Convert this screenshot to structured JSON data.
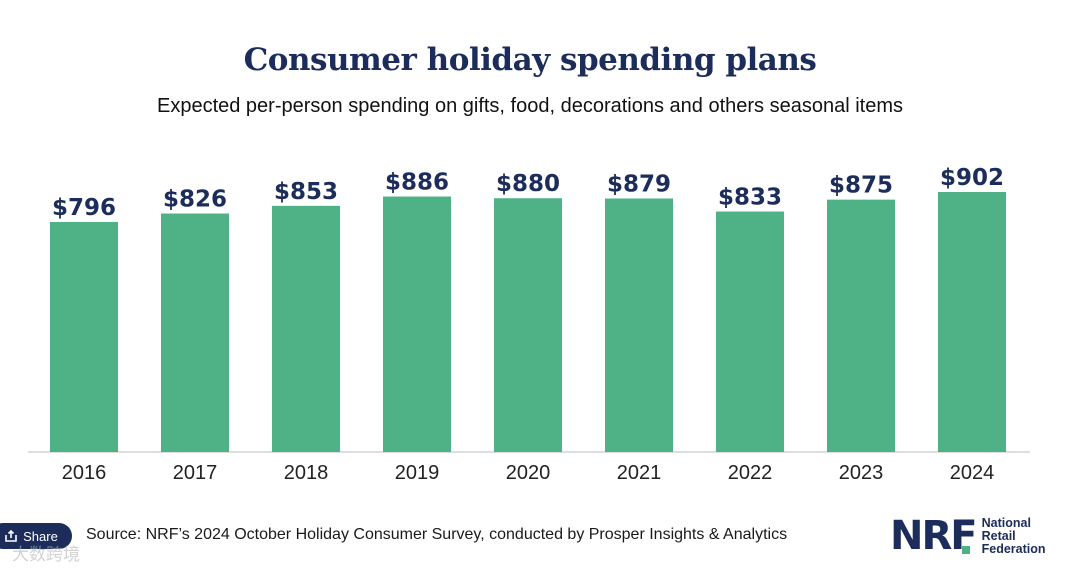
{
  "header": {
    "title": "Consumer holiday spending plans",
    "subtitle": "Expected per-person spending on gifts, food, decorations and others seasonal items"
  },
  "chart_data": {
    "type": "bar",
    "title": "Consumer holiday spending plans",
    "subtitle": "Expected per-person spending on gifts, food, decorations and others seasonal items",
    "categories": [
      "2016",
      "2017",
      "2018",
      "2019",
      "2020",
      "2021",
      "2022",
      "2023",
      "2024"
    ],
    "values": [
      796,
      826,
      853,
      886,
      880,
      879,
      833,
      875,
      902
    ],
    "value_labels": [
      "$796",
      "$826",
      "$853",
      "$886",
      "$880",
      "$879",
      "$833",
      "$875",
      "$902"
    ],
    "xlabel": "",
    "ylabel": "",
    "ylim": [
      0,
      1000
    ],
    "grid": false,
    "legend": "none",
    "colors": {
      "bar": "#4fb286",
      "label": "#1c2c5b"
    }
  },
  "footer": {
    "share_label": "Share",
    "source": "Source: NRF’s 2024 October Holiday Consumer Survey, conducted by Prosper Insights & Analytics",
    "watermark": "大数跨境",
    "logo": {
      "mark": "NRF",
      "line1": "National",
      "line2": "Retail",
      "line3": "Federation"
    }
  },
  "icons": {
    "share": "share-icon"
  }
}
